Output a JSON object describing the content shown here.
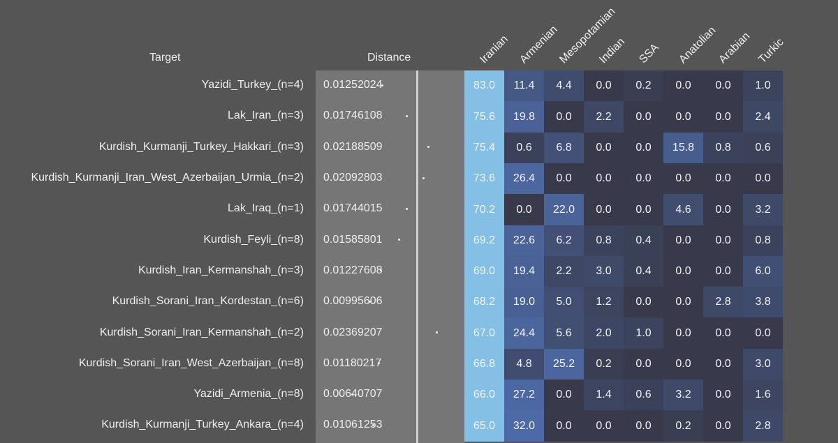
{
  "headers": {
    "target": "Target",
    "distance": "Distance"
  },
  "chart_data": {
    "type": "heatmap",
    "columns": [
      "Iranian",
      "Armenian",
      "Mesopotamian",
      "Indian",
      "SSA",
      "Anatolian",
      "Arabian",
      "Turkic"
    ],
    "rows": [
      {
        "target": "Yazidi_Turkey_(n=4)",
        "distance": "0.01252024",
        "values": [
          83.0,
          11.4,
          4.4,
          0.0,
          0.2,
          0.0,
          0.0,
          1.0
        ]
      },
      {
        "target": "Lak_Iran_(n=3)",
        "distance": "0.01746108",
        "values": [
          75.6,
          19.8,
          0.0,
          2.2,
          0.0,
          0.0,
          0.0,
          2.4
        ]
      },
      {
        "target": "Kurdish_Kurmanji_Turkey_Hakkari_(n=3)",
        "distance": "0.02188509",
        "values": [
          75.4,
          0.6,
          6.8,
          0.0,
          0.0,
          15.8,
          0.8,
          0.6
        ]
      },
      {
        "target": "Kurdish_Kurmanji_Iran_West_Azerbaijan_Urmia_(n=2)",
        "distance": "0.02092803",
        "values": [
          73.6,
          26.4,
          0.0,
          0.0,
          0.0,
          0.0,
          0.0,
          0.0
        ]
      },
      {
        "target": "Lak_Iraq_(n=1)",
        "distance": "0.01744015",
        "values": [
          70.2,
          0.0,
          22.0,
          0.0,
          0.0,
          4.6,
          0.0,
          3.2
        ]
      },
      {
        "target": "Kurdish_Feyli_(n=8)",
        "distance": "0.01585801",
        "values": [
          69.2,
          22.6,
          6.2,
          0.8,
          0.4,
          0.0,
          0.0,
          0.8
        ]
      },
      {
        "target": "Kurdish_Iran_Kermanshah_(n=3)",
        "distance": "0.01227608",
        "values": [
          69.0,
          19.4,
          2.2,
          3.0,
          0.4,
          0.0,
          0.0,
          6.0
        ]
      },
      {
        "target": "Kurdish_Sorani_Iran_Kordestan_(n=6)",
        "distance": "0.00995606",
        "values": [
          68.2,
          19.0,
          5.0,
          1.2,
          0.0,
          0.0,
          2.8,
          3.8
        ]
      },
      {
        "target": "Kurdish_Sorani_Iran_Kermanshah_(n=2)",
        "distance": "0.02369207",
        "values": [
          67.0,
          24.4,
          5.6,
          2.0,
          1.0,
          0.0,
          0.0,
          0.0
        ]
      },
      {
        "target": "Kurdish_Sorani_Iran_West_Azerbaijan_(n=8)",
        "distance": "0.01180217",
        "values": [
          66.8,
          4.8,
          25.2,
          0.2,
          0.0,
          0.0,
          0.0,
          3.0
        ]
      },
      {
        "target": "Yazidi_Armenia_(n=8)",
        "distance": "0.00640707",
        "values": [
          66.0,
          27.2,
          0.0,
          1.4,
          0.6,
          3.2,
          0.0,
          1.6
        ]
      },
      {
        "target": "Kurdish_Kurmanji_Turkey_Ankara_(n=4)",
        "distance": "0.01061253",
        "values": [
          65.0,
          32.0,
          0.0,
          0.0,
          0.0,
          0.2,
          0.0,
          2.8
        ]
      }
    ]
  },
  "colors": {
    "background": "#555555",
    "distance_panel": "#767676",
    "distance_axis_line": "#cfcfcf",
    "heat_low": "#383a4c",
    "heat_high": "#4d6aa6",
    "iranian_column": "#84c0e6"
  }
}
